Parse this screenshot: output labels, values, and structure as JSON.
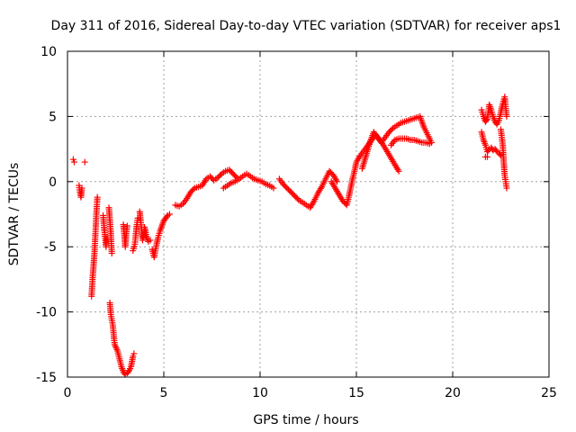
{
  "chart_data": {
    "type": "scatter",
    "title": "Day 311 of 2016, Sidereal Day-to-day VTEC variation (SDTVAR) for receiver aps1",
    "xlabel": "GPS time / hours",
    "ylabel": "SDTVAR / TECUs",
    "xlim": [
      0,
      25
    ],
    "ylim": [
      -15,
      10
    ],
    "xticks": [
      0,
      5,
      10,
      15,
      20,
      25
    ],
    "yticks": [
      -15,
      -10,
      -5,
      0,
      5,
      10
    ],
    "xtick_labels": [
      "0",
      "5",
      "10",
      "15",
      "20",
      "25"
    ],
    "ytick_labels": [
      "-15",
      "-10",
      "-5",
      "0",
      "5",
      "10"
    ],
    "grid": true,
    "marker": "+",
    "series": [
      {
        "name": "SDTVAR",
        "color": "#ff0000",
        "segments": [
          [
            [
              0.3,
              1.7
            ],
            [
              0.35,
              1.5
            ]
          ],
          [
            [
              0.6,
              -0.3
            ],
            [
              0.65,
              -0.8
            ],
            [
              0.7,
              -1.2
            ],
            [
              0.75,
              -0.5
            ]
          ],
          [
            [
              0.9,
              1.5
            ]
          ],
          [
            [
              1.25,
              -8.8
            ],
            [
              1.3,
              -7.5
            ],
            [
              1.35,
              -6.5
            ],
            [
              1.4,
              -5.5
            ],
            [
              1.45,
              -4.0
            ],
            [
              1.5,
              -2.5
            ],
            [
              1.55,
              -1.2
            ]
          ],
          [
            [
              1.85,
              -2.6
            ],
            [
              1.9,
              -3.5
            ],
            [
              1.95,
              -4.2
            ],
            [
              2.0,
              -5.0
            ],
            [
              2.05,
              -4.3
            ]
          ],
          [
            [
              2.15,
              -2.0
            ],
            [
              2.2,
              -3.0
            ],
            [
              2.25,
              -4.0
            ],
            [
              2.3,
              -5.5
            ]
          ],
          [
            [
              2.2,
              -9.3
            ],
            [
              2.25,
              -10.2
            ],
            [
              2.35,
              -11.0
            ],
            [
              2.45,
              -12.5
            ],
            [
              2.6,
              -13.0
            ],
            [
              2.7,
              -13.6
            ],
            [
              2.8,
              -14.2
            ],
            [
              2.9,
              -14.6
            ],
            [
              3.0,
              -14.8
            ],
            [
              3.1,
              -14.7
            ],
            [
              3.2,
              -14.5
            ],
            [
              3.3,
              -14.2
            ],
            [
              3.35,
              -13.8
            ],
            [
              3.4,
              -13.4
            ],
            [
              3.45,
              -13.2
            ]
          ],
          [
            [
              2.9,
              -3.3
            ],
            [
              2.95,
              -4.0
            ],
            [
              3.0,
              -5.0
            ],
            [
              3.05,
              -4.0
            ],
            [
              3.1,
              -3.4
            ]
          ],
          [
            [
              3.4,
              -5.3
            ],
            [
              3.5,
              -4.8
            ],
            [
              3.55,
              -4.0
            ],
            [
              3.6,
              -3.3
            ],
            [
              3.65,
              -2.8
            ]
          ],
          [
            [
              3.75,
              -2.3
            ],
            [
              3.8,
              -3.0
            ],
            [
              3.85,
              -3.8
            ],
            [
              3.9,
              -4.5
            ],
            [
              3.95,
              -4.3
            ],
            [
              4.0,
              -3.5
            ],
            [
              4.1,
              -4.2
            ],
            [
              4.2,
              -4.6
            ],
            [
              4.3,
              -4.5
            ]
          ],
          [
            [
              4.4,
              -5.2
            ],
            [
              4.5,
              -5.8
            ],
            [
              4.6,
              -5.0
            ],
            [
              4.7,
              -4.3
            ],
            [
              4.8,
              -3.8
            ],
            [
              4.9,
              -3.4
            ],
            [
              5.0,
              -3.0
            ],
            [
              5.1,
              -2.8
            ],
            [
              5.2,
              -2.6
            ],
            [
              5.3,
              -2.5
            ]
          ],
          [
            [
              5.6,
              -1.8
            ],
            [
              5.8,
              -1.9
            ],
            [
              6.0,
              -1.7
            ],
            [
              6.2,
              -1.3
            ],
            [
              6.4,
              -0.8
            ],
            [
              6.6,
              -0.5
            ],
            [
              6.8,
              -0.4
            ],
            [
              7.0,
              -0.3
            ],
            [
              7.2,
              0.2
            ],
            [
              7.4,
              0.4
            ],
            [
              7.6,
              0.1
            ],
            [
              7.8,
              0.3
            ],
            [
              8.0,
              0.6
            ],
            [
              8.2,
              0.8
            ],
            [
              8.4,
              0.9
            ],
            [
              8.6,
              0.6
            ],
            [
              8.8,
              0.3
            ]
          ],
          [
            [
              8.1,
              -0.5
            ],
            [
              8.3,
              -0.3
            ],
            [
              8.5,
              -0.1
            ],
            [
              8.7,
              0.0
            ],
            [
              8.9,
              0.2
            ],
            [
              9.1,
              0.4
            ],
            [
              9.3,
              0.6
            ],
            [
              9.5,
              0.4
            ],
            [
              9.7,
              0.2
            ],
            [
              9.9,
              0.1
            ],
            [
              10.1,
              0.0
            ],
            [
              10.3,
              -0.2
            ],
            [
              10.5,
              -0.3
            ],
            [
              10.7,
              -0.5
            ]
          ],
          [
            [
              11.0,
              0.2
            ],
            [
              11.2,
              -0.2
            ],
            [
              11.4,
              -0.5
            ],
            [
              11.6,
              -0.8
            ],
            [
              11.8,
              -1.1
            ],
            [
              12.0,
              -1.4
            ],
            [
              12.2,
              -1.6
            ],
            [
              12.4,
              -1.8
            ],
            [
              12.6,
              -2.0
            ],
            [
              12.8,
              -1.5
            ],
            [
              13.0,
              -0.9
            ],
            [
              13.2,
              -0.4
            ],
            [
              13.4,
              0.2
            ],
            [
              13.6,
              0.8
            ],
            [
              13.8,
              0.5
            ],
            [
              14.0,
              0.0
            ]
          ],
          [
            [
              13.7,
              0.0
            ],
            [
              13.9,
              -0.5
            ],
            [
              14.1,
              -1.0
            ],
            [
              14.3,
              -1.5
            ],
            [
              14.5,
              -1.8
            ],
            [
              14.6,
              -1.2
            ],
            [
              14.7,
              -0.5
            ],
            [
              14.8,
              0.2
            ],
            [
              14.9,
              0.8
            ],
            [
              15.0,
              1.5
            ],
            [
              15.2,
              2.0
            ],
            [
              15.4,
              2.4
            ],
            [
              15.6,
              2.8
            ],
            [
              15.8,
              3.2
            ],
            [
              16.0,
              3.6
            ],
            [
              16.2,
              3.2
            ],
            [
              16.4,
              2.8
            ],
            [
              16.6,
              2.3
            ],
            [
              16.8,
              1.8
            ],
            [
              17.0,
              1.3
            ],
            [
              17.2,
              0.8
            ]
          ],
          [
            [
              15.3,
              1.0
            ],
            [
              15.5,
              2.0
            ],
            [
              15.7,
              3.0
            ],
            [
              15.9,
              3.8
            ],
            [
              16.1,
              3.4
            ],
            [
              16.3,
              3.0
            ],
            [
              16.5,
              3.4
            ],
            [
              16.7,
              3.8
            ],
            [
              16.9,
              4.1
            ],
            [
              17.1,
              4.3
            ],
            [
              17.3,
              4.5
            ],
            [
              17.5,
              4.6
            ],
            [
              17.7,
              4.7
            ],
            [
              17.9,
              4.8
            ],
            [
              18.1,
              4.9
            ],
            [
              18.3,
              5.0
            ],
            [
              18.5,
              4.2
            ],
            [
              18.7,
              3.6
            ],
            [
              18.9,
              3.0
            ]
          ],
          [
            [
              16.8,
              2.8
            ],
            [
              17.0,
              3.2
            ],
            [
              17.2,
              3.3
            ],
            [
              17.4,
              3.3
            ],
            [
              17.6,
              3.3
            ],
            [
              17.8,
              3.2
            ],
            [
              18.0,
              3.2
            ],
            [
              18.2,
              3.1
            ],
            [
              18.4,
              3.0
            ],
            [
              18.6,
              3.0
            ],
            [
              18.8,
              2.9
            ]
          ],
          [
            [
              21.5,
              5.5
            ],
            [
              21.6,
              5.0
            ],
            [
              21.7,
              4.6
            ],
            [
              21.8,
              4.8
            ],
            [
              21.9,
              5.9
            ],
            [
              22.0,
              5.5
            ],
            [
              22.1,
              5.0
            ],
            [
              22.2,
              4.6
            ],
            [
              22.3,
              4.4
            ],
            [
              22.4,
              4.7
            ],
            [
              22.5,
              5.3
            ],
            [
              22.6,
              6.0
            ],
            [
              22.7,
              6.5
            ],
            [
              22.8,
              5.0
            ]
          ],
          [
            [
              21.5,
              3.8
            ],
            [
              21.6,
              3.2
            ],
            [
              21.7,
              2.8
            ],
            [
              21.8,
              2.3
            ],
            [
              21.9,
              2.5
            ],
            [
              22.0,
              2.6
            ],
            [
              22.1,
              2.4
            ],
            [
              22.2,
              2.5
            ],
            [
              22.3,
              2.3
            ],
            [
              22.4,
              2.2
            ],
            [
              22.5,
              2.0
            ]
          ],
          [
            [
              21.7,
              1.9
            ],
            [
              21.8,
              1.9
            ]
          ],
          [
            [
              22.5,
              4.0
            ],
            [
              22.6,
              2.8
            ],
            [
              22.65,
              1.5
            ],
            [
              22.7,
              0.5
            ],
            [
              22.75,
              0.0
            ],
            [
              22.8,
              -0.5
            ]
          ]
        ]
      }
    ]
  }
}
